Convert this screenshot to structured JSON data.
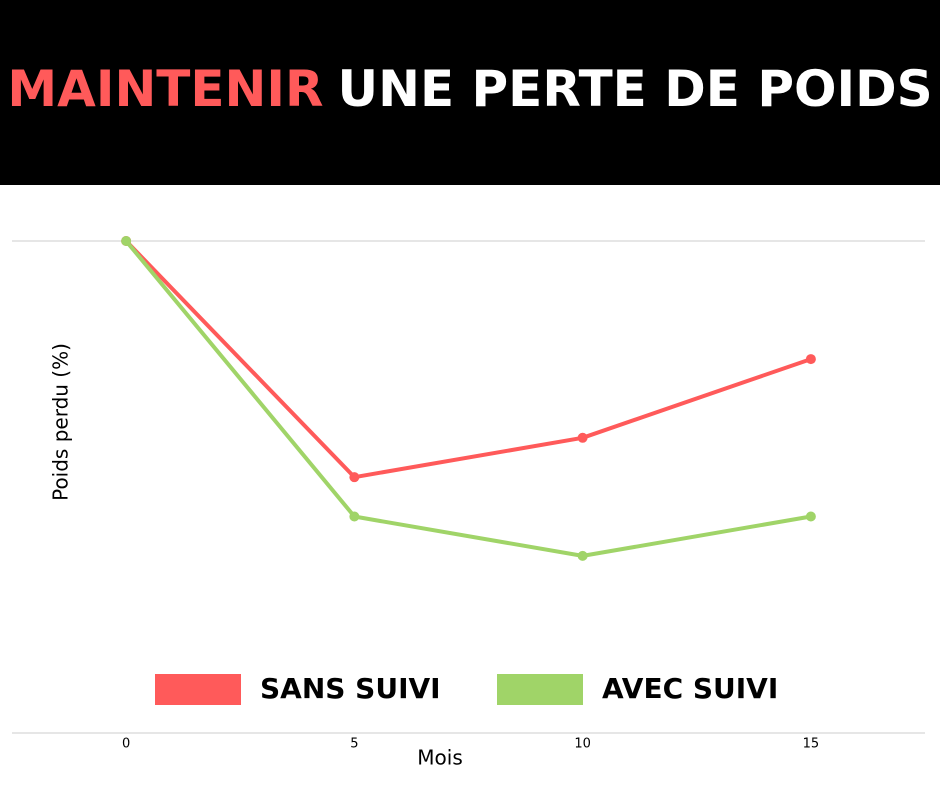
{
  "chart_data": {
    "type": "line",
    "title_highlight": "MAINTENIR",
    "title": "UNE PERTE DE POIDS",
    "y_label": "Poids perdu (%)",
    "x_label": "Mois",
    "x": [
      0,
      5,
      10,
      15
    ],
    "xlim": [
      -2.5,
      17.5
    ],
    "xticks": [
      0,
      5,
      10,
      15
    ],
    "ylim": [
      -10,
      0
    ],
    "series": [
      {
        "name": "SANS SUIVI",
        "color": "#ff5a5a",
        "values": [
          0,
          -4.8,
          -4,
          -2.4
        ]
      },
      {
        "name": "AVEC SUIVI",
        "color": "#a0d468",
        "values": [
          0,
          -5.6,
          -6.4,
          -5.6
        ]
      }
    ]
  }
}
